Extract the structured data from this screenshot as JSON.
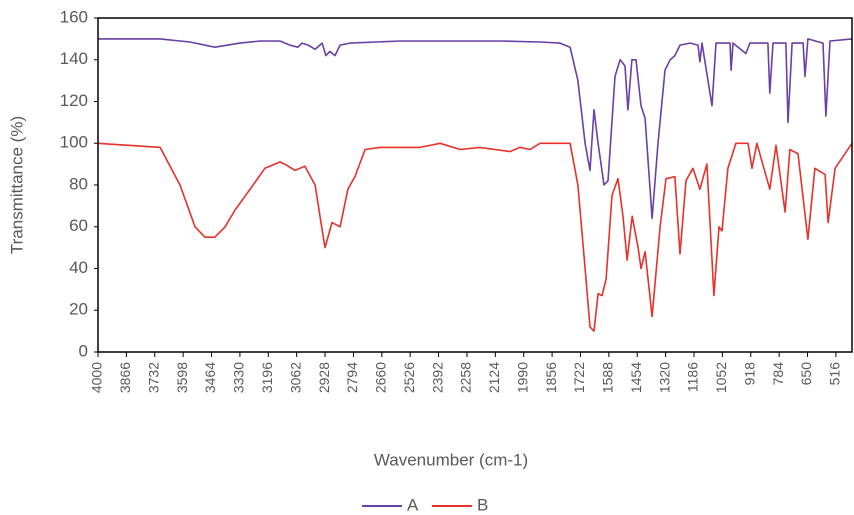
{
  "chart_data": {
    "type": "line",
    "x_label": "Wavenumber (cm-1)",
    "y_label": "Transmittance (%)",
    "xlim": [
      4000,
      440
    ],
    "xticks": [
      4000,
      3866,
      3732,
      3598,
      3464,
      3330,
      3196,
      3062,
      2928,
      2794,
      2660,
      2526,
      2392,
      2258,
      2124,
      1990,
      1856,
      1722,
      1588,
      1454,
      1320,
      1186,
      1052,
      918,
      784,
      650,
      516
    ],
    "ylim": [
      0,
      160
    ],
    "yticks": [
      0,
      20,
      40,
      60,
      80,
      100,
      120,
      140,
      160
    ],
    "legend": "bottom",
    "series": [
      {
        "name": "A",
        "color": "#6a3fa6",
        "x": [
          4000,
          3707,
          3566,
          3448,
          3330,
          3235,
          3141,
          3094,
          3056,
          3037,
          3008,
          2975,
          2942,
          2924,
          2905,
          2881,
          2857,
          2810,
          2574,
          2102,
          1913,
          1819,
          1771,
          1734,
          1700,
          1677,
          1658,
          1639,
          1611,
          1592,
          1559,
          1535,
          1512,
          1498,
          1479,
          1460,
          1436,
          1417,
          1384,
          1356,
          1323,
          1299,
          1276,
          1252,
          1205,
          1167,
          1158,
          1148,
          1101,
          1082,
          1016,
          1011,
          1002,
          941,
          922,
          837,
          828,
          813,
          752,
          742,
          723,
          671,
          662,
          648,
          577,
          563,
          544,
          440
        ],
        "values": [
          150,
          150,
          148.5,
          146,
          148,
          149,
          149,
          147,
          146,
          148,
          147,
          145,
          148,
          142,
          144,
          142,
          147,
          148,
          149,
          149,
          148.5,
          148,
          146,
          130,
          100,
          87,
          116,
          100,
          80,
          82,
          132,
          140,
          137,
          116,
          140,
          140,
          118,
          112,
          64,
          100,
          135,
          140,
          142,
          147,
          148,
          147,
          139,
          148,
          118,
          148,
          148,
          135,
          148,
          143,
          148,
          148,
          124,
          148,
          148,
          110,
          148,
          148,
          132,
          150,
          148,
          113,
          149,
          150
        ]
      },
      {
        "name": "B",
        "color": "#e8312a",
        "x": [
          4000,
          3707,
          3613,
          3542,
          3495,
          3448,
          3400,
          3353,
          3282,
          3212,
          3141,
          3118,
          3070,
          3023,
          2975,
          2952,
          2928,
          2895,
          2857,
          2820,
          2787,
          2739,
          2669,
          2480,
          2385,
          2291,
          2196,
          2055,
          2008,
          1960,
          1913,
          1771,
          1734,
          1700,
          1677,
          1658,
          1639,
          1620,
          1601,
          1573,
          1545,
          1521,
          1502,
          1478,
          1450,
          1436,
          1417,
          1384,
          1346,
          1318,
          1276,
          1252,
          1224,
          1191,
          1158,
          1125,
          1092,
          1068,
          1054,
          1026,
          988,
          931,
          912,
          889,
          828,
          799,
          756,
          733,
          695,
          648,
          615,
          567,
          553,
          520,
          440
        ],
        "values": [
          100,
          98,
          80,
          60,
          55,
          55,
          60,
          68,
          78,
          88,
          91,
          90,
          87,
          89,
          80,
          65,
          50,
          62,
          60,
          78,
          84,
          97,
          98,
          98,
          100,
          97,
          98,
          96,
          98,
          97,
          100,
          100,
          80,
          40,
          12,
          10,
          28,
          27,
          35,
          75,
          83,
          65,
          44,
          65,
          50,
          40,
          48,
          17,
          60,
          83,
          84,
          47,
          82,
          88,
          78,
          90,
          27,
          60,
          58,
          88,
          100,
          100,
          88,
          100,
          78,
          99,
          67,
          97,
          95,
          54,
          88,
          85,
          62,
          88,
          100
        ]
      }
    ]
  }
}
